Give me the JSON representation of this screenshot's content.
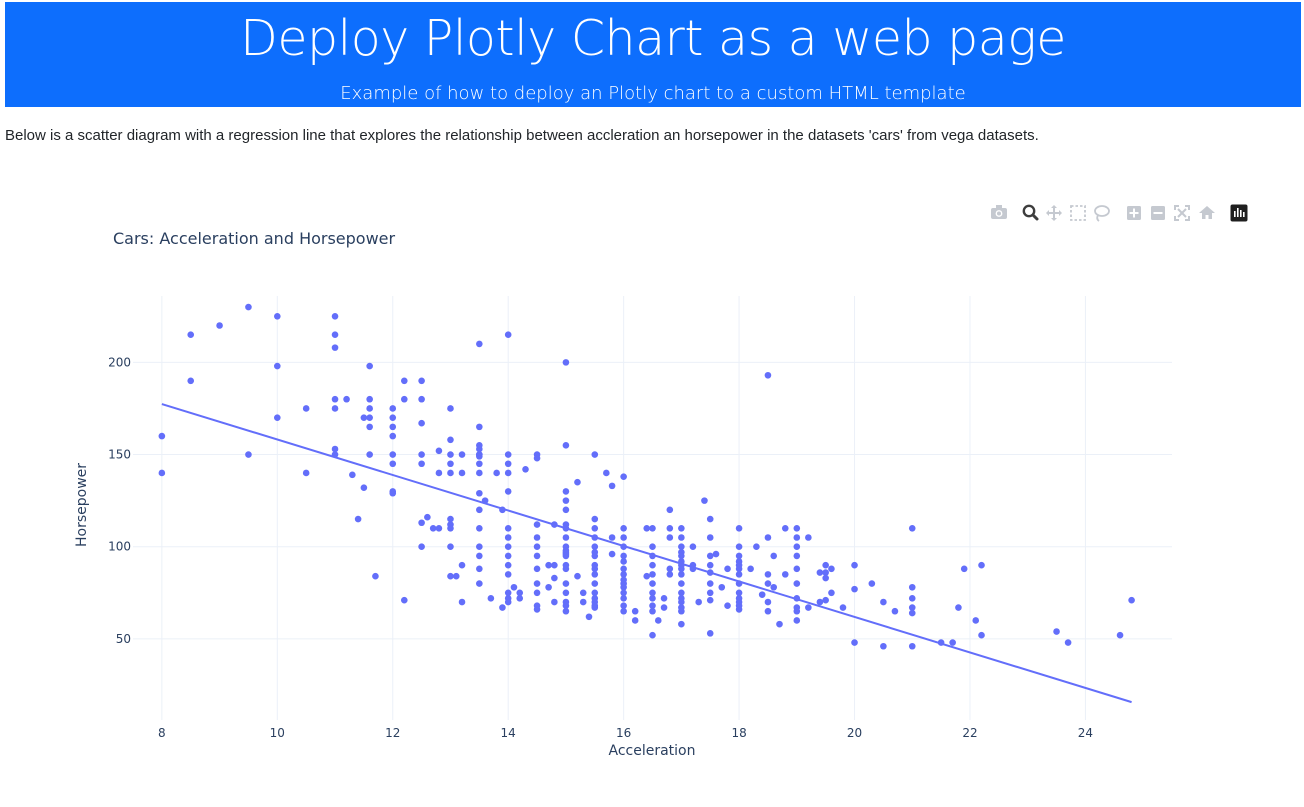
{
  "header": {
    "title": "Deploy Plotly Chart as a web page",
    "subtitle": "Example of how to deploy an Plotly chart to a custom HTML template"
  },
  "intro_text": "Below is a scatter diagram with a regression line that explores the relationship between accleration an horsepower in the datasets 'cars' from vega datasets.",
  "modebar": {
    "buttons": [
      "camera-icon",
      "zoom-icon",
      "pan-icon",
      "box-select-icon",
      "lasso-select-icon",
      "zoom-in-icon",
      "zoom-out-icon",
      "autoscale-icon",
      "reset-axes-icon",
      "plotly-logo-icon"
    ],
    "active": "zoom-icon"
  },
  "colors": {
    "banner": "#0d6efd",
    "marker": "#636efa",
    "line": "#636efa",
    "grid": "#ebf0f8",
    "axis_text": "#2a3f5f"
  },
  "chart_data": {
    "type": "scatter",
    "title": "Cars: Acceleration and Horsepower",
    "xlabel": "Acceleration",
    "ylabel": "Horsepower",
    "xlim": [
      7.5,
      25.5
    ],
    "ylim": [
      6,
      236
    ],
    "x_ticks": [
      8,
      10,
      12,
      14,
      16,
      18,
      20,
      22,
      24
    ],
    "y_ticks": [
      50,
      100,
      150,
      200
    ],
    "grid": true,
    "legend": "none",
    "trendline": {
      "x": [
        8,
        24.8
      ],
      "y": [
        177.4,
        15.7
      ]
    },
    "points": [
      [
        8,
        160
      ],
      [
        8,
        140
      ],
      [
        8.5,
        215
      ],
      [
        8.5,
        190
      ],
      [
        9,
        220
      ],
      [
        9.5,
        230
      ],
      [
        9.5,
        150
      ],
      [
        10,
        225
      ],
      [
        10,
        198
      ],
      [
        10,
        170
      ],
      [
        10.5,
        175
      ],
      [
        10.5,
        140
      ],
      [
        11,
        225
      ],
      [
        11,
        215
      ],
      [
        11,
        208
      ],
      [
        11,
        180
      ],
      [
        11,
        175
      ],
      [
        11,
        153
      ],
      [
        11,
        150
      ],
      [
        11.2,
        180
      ],
      [
        11.3,
        139
      ],
      [
        11.4,
        115
      ],
      [
        11.5,
        132
      ],
      [
        11.5,
        170
      ],
      [
        11.6,
        198
      ],
      [
        11.6,
        180
      ],
      [
        11.6,
        175
      ],
      [
        11.6,
        170
      ],
      [
        11.6,
        165
      ],
      [
        11.6,
        150
      ],
      [
        11.7,
        84
      ],
      [
        12,
        175
      ],
      [
        12,
        170
      ],
      [
        12,
        165
      ],
      [
        12,
        160
      ],
      [
        12,
        150
      ],
      [
        12,
        145
      ],
      [
        12,
        130
      ],
      [
        12,
        129
      ],
      [
        12.2,
        180
      ],
      [
        12.2,
        71
      ],
      [
        12.2,
        190
      ],
      [
        12.5,
        190
      ],
      [
        12.5,
        180
      ],
      [
        12.5,
        167
      ],
      [
        12.5,
        150
      ],
      [
        12.5,
        145
      ],
      [
        12.5,
        113
      ],
      [
        12.5,
        100
      ],
      [
        12.6,
        116
      ],
      [
        12.7,
        110
      ],
      [
        12.8,
        110
      ],
      [
        12.8,
        140
      ],
      [
        12.8,
        152
      ],
      [
        13,
        115
      ],
      [
        13,
        150
      ],
      [
        13,
        158
      ],
      [
        13,
        175
      ],
      [
        13,
        100
      ],
      [
        13,
        84
      ],
      [
        13,
        145
      ],
      [
        13,
        140
      ],
      [
        13,
        112
      ],
      [
        13,
        110
      ],
      [
        13.1,
        84
      ],
      [
        13.2,
        150
      ],
      [
        13.2,
        140
      ],
      [
        13.2,
        90
      ],
      [
        13.2,
        70
      ],
      [
        13.5,
        165
      ],
      [
        13.5,
        129
      ],
      [
        13.5,
        210
      ],
      [
        13.5,
        150
      ],
      [
        13.5,
        155
      ],
      [
        13.5,
        153
      ],
      [
        13.5,
        150
      ],
      [
        13.5,
        149
      ],
      [
        13.5,
        145
      ],
      [
        13.5,
        140
      ],
      [
        13.5,
        120
      ],
      [
        13.5,
        110
      ],
      [
        13.5,
        100
      ],
      [
        13.5,
        95
      ],
      [
        13.5,
        88
      ],
      [
        13.5,
        80
      ],
      [
        13.6,
        125
      ],
      [
        13.7,
        72
      ],
      [
        13.8,
        140
      ],
      [
        13.9,
        120
      ],
      [
        13.9,
        67
      ],
      [
        14,
        215
      ],
      [
        14,
        150
      ],
      [
        14,
        145
      ],
      [
        14,
        140
      ],
      [
        14,
        130
      ],
      [
        14,
        110
      ],
      [
        14,
        105
      ],
      [
        14,
        100
      ],
      [
        14,
        95
      ],
      [
        14,
        90
      ],
      [
        14,
        85
      ],
      [
        14,
        75
      ],
      [
        14,
        72
      ],
      [
        14,
        70
      ],
      [
        14.1,
        78
      ],
      [
        14.2,
        75
      ],
      [
        14.2,
        72
      ],
      [
        14.3,
        142
      ],
      [
        14.5,
        150
      ],
      [
        14.5,
        148
      ],
      [
        14.5,
        112
      ],
      [
        14.5,
        105
      ],
      [
        14.5,
        100
      ],
      [
        14.5,
        95
      ],
      [
        14.5,
        88
      ],
      [
        14.5,
        80
      ],
      [
        14.5,
        75
      ],
      [
        14.5,
        68
      ],
      [
        14.5,
        66
      ],
      [
        14.7,
        90
      ],
      [
        14.7,
        78
      ],
      [
        14.8,
        112
      ],
      [
        14.8,
        90
      ],
      [
        14.8,
        83
      ],
      [
        14.8,
        70
      ],
      [
        15,
        155
      ],
      [
        15,
        130
      ],
      [
        15,
        125
      ],
      [
        15,
        120
      ],
      [
        15,
        112
      ],
      [
        15,
        110
      ],
      [
        15,
        105
      ],
      [
        15,
        100
      ],
      [
        15,
        98
      ],
      [
        15,
        97
      ],
      [
        15,
        96
      ],
      [
        15,
        95
      ],
      [
        15,
        90
      ],
      [
        15,
        88
      ],
      [
        15,
        80
      ],
      [
        15,
        75
      ],
      [
        15,
        70
      ],
      [
        15,
        68
      ],
      [
        15,
        65
      ],
      [
        15,
        200
      ],
      [
        15.2,
        135
      ],
      [
        15.2,
        84
      ],
      [
        15.3,
        75
      ],
      [
        15.3,
        70
      ],
      [
        15.4,
        62
      ],
      [
        15.5,
        150
      ],
      [
        15.5,
        115
      ],
      [
        15.5,
        110
      ],
      [
        15.5,
        105
      ],
      [
        15.5,
        100
      ],
      [
        15.5,
        97
      ],
      [
        15.5,
        95
      ],
      [
        15.5,
        90
      ],
      [
        15.5,
        88
      ],
      [
        15.5,
        85
      ],
      [
        15.5,
        80
      ],
      [
        15.5,
        75
      ],
      [
        15.5,
        72
      ],
      [
        15.5,
        70
      ],
      [
        15.5,
        68
      ],
      [
        15.5,
        67
      ],
      [
        15.7,
        140
      ],
      [
        15.8,
        133
      ],
      [
        15.8,
        105
      ],
      [
        15.8,
        96
      ],
      [
        16,
        138
      ],
      [
        16,
        110
      ],
      [
        16,
        105
      ],
      [
        16,
        100
      ],
      [
        16,
        95
      ],
      [
        16,
        92
      ],
      [
        16,
        88
      ],
      [
        16,
        85
      ],
      [
        16,
        82
      ],
      [
        16,
        80
      ],
      [
        16,
        78
      ],
      [
        16,
        75
      ],
      [
        16,
        72
      ],
      [
        16,
        68
      ],
      [
        16,
        65
      ],
      [
        16.2,
        65
      ],
      [
        16.2,
        60
      ],
      [
        16.4,
        84
      ],
      [
        16.4,
        110
      ],
      [
        16.5,
        110
      ],
      [
        16.5,
        100
      ],
      [
        16.5,
        95
      ],
      [
        16.5,
        90
      ],
      [
        16.5,
        85
      ],
      [
        16.5,
        80
      ],
      [
        16.5,
        75
      ],
      [
        16.5,
        72
      ],
      [
        16.5,
        68
      ],
      [
        16.5,
        65
      ],
      [
        16.5,
        52
      ],
      [
        16.6,
        60
      ],
      [
        16.7,
        72
      ],
      [
        16.7,
        67
      ],
      [
        16.8,
        120
      ],
      [
        16.8,
        110
      ],
      [
        16.8,
        105
      ],
      [
        16.8,
        88
      ],
      [
        16.8,
        85
      ],
      [
        17,
        110
      ],
      [
        17,
        105
      ],
      [
        17,
        100
      ],
      [
        17,
        97
      ],
      [
        17,
        95
      ],
      [
        17,
        92
      ],
      [
        17,
        90
      ],
      [
        17,
        88
      ],
      [
        17,
        85
      ],
      [
        17,
        80
      ],
      [
        17,
        75
      ],
      [
        17,
        72
      ],
      [
        17,
        70
      ],
      [
        17,
        67
      ],
      [
        17,
        65
      ],
      [
        17,
        58
      ],
      [
        17.2,
        100
      ],
      [
        17.2,
        90
      ],
      [
        17.2,
        88
      ],
      [
        17.3,
        70
      ],
      [
        17.4,
        125
      ],
      [
        17.5,
        115
      ],
      [
        17.5,
        105
      ],
      [
        17.5,
        95
      ],
      [
        17.5,
        90
      ],
      [
        17.5,
        86
      ],
      [
        17.5,
        80
      ],
      [
        17.5,
        75
      ],
      [
        17.5,
        71
      ],
      [
        17.5,
        53
      ],
      [
        17.6,
        96
      ],
      [
        17.7,
        78
      ],
      [
        17.8,
        88
      ],
      [
        17.8,
        68
      ],
      [
        18,
        110
      ],
      [
        18,
        100
      ],
      [
        18,
        95
      ],
      [
        18,
        92
      ],
      [
        18,
        90
      ],
      [
        18,
        88
      ],
      [
        18,
        85
      ],
      [
        18,
        80
      ],
      [
        18,
        75
      ],
      [
        18,
        72
      ],
      [
        18,
        70
      ],
      [
        18,
        68
      ],
      [
        18,
        66
      ],
      [
        18.2,
        88
      ],
      [
        18.3,
        100
      ],
      [
        18.4,
        74
      ],
      [
        18.5,
        193
      ],
      [
        18.5,
        105
      ],
      [
        18.5,
        85
      ],
      [
        18.5,
        80
      ],
      [
        18.5,
        70
      ],
      [
        18.5,
        65
      ],
      [
        18.6,
        95
      ],
      [
        18.6,
        78
      ],
      [
        18.7,
        58
      ],
      [
        18.8,
        110
      ],
      [
        18.8,
        85
      ],
      [
        19,
        110
      ],
      [
        19,
        105
      ],
      [
        19,
        100
      ],
      [
        19,
        95
      ],
      [
        19,
        88
      ],
      [
        19,
        80
      ],
      [
        19,
        72
      ],
      [
        19,
        67
      ],
      [
        19,
        65
      ],
      [
        19,
        60
      ],
      [
        19.2,
        105
      ],
      [
        19.2,
        67
      ],
      [
        19.4,
        86
      ],
      [
        19.4,
        70
      ],
      [
        19.5,
        90
      ],
      [
        19.5,
        86
      ],
      [
        19.5,
        83
      ],
      [
        19.5,
        71
      ],
      [
        19.6,
        88
      ],
      [
        19.6,
        75
      ],
      [
        19.8,
        67
      ],
      [
        20,
        90
      ],
      [
        20,
        77
      ],
      [
        20,
        48
      ],
      [
        20.3,
        80
      ],
      [
        20.5,
        70
      ],
      [
        20.5,
        46
      ],
      [
        20.7,
        65
      ],
      [
        21,
        110
      ],
      [
        21,
        78
      ],
      [
        21,
        72
      ],
      [
        21,
        67
      ],
      [
        21,
        64
      ],
      [
        21,
        46
      ],
      [
        21.5,
        48
      ],
      [
        21.7,
        48
      ],
      [
        21.8,
        67
      ],
      [
        21.9,
        88
      ],
      [
        22.1,
        60
      ],
      [
        22.2,
        90
      ],
      [
        22.2,
        52
      ],
      [
        23.5,
        54
      ],
      [
        23.7,
        48
      ],
      [
        24.6,
        52
      ],
      [
        24.8,
        71
      ]
    ]
  }
}
